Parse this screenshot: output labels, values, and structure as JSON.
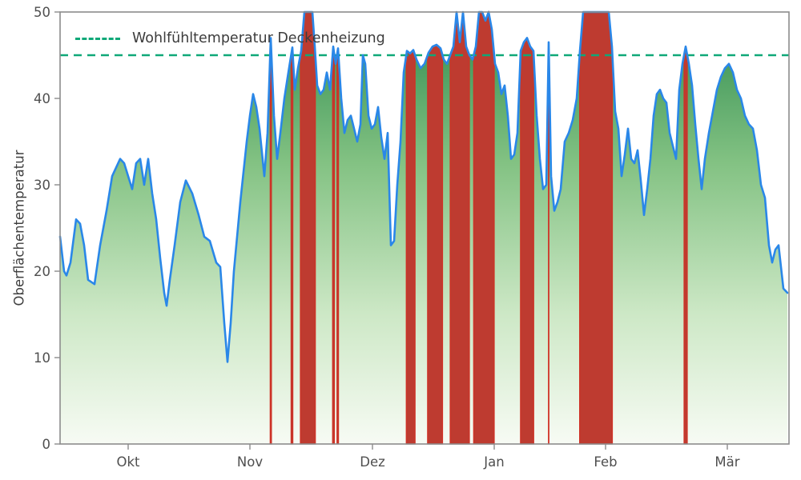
{
  "chart_data": {
    "type": "area",
    "title": "",
    "xlabel": "",
    "ylabel": "Oberflächentemperatur",
    "ylim": [
      0,
      50
    ],
    "xlim": [
      0,
      182
    ],
    "grid": false,
    "legend_position": "upper left",
    "y_ticks": [
      0,
      10,
      20,
      30,
      40,
      50
    ],
    "x_ticks": [
      {
        "label": "Okt",
        "day": 17
      },
      {
        "label": "Nov",
        "day": 47.4
      },
      {
        "label": "Dez",
        "day": 78
      },
      {
        "label": "Jan",
        "day": 108.4
      },
      {
        "label": "Feb",
        "day": 136.2
      },
      {
        "label": "Mär",
        "day": 166.6
      }
    ],
    "threshold": {
      "value": 45,
      "label": "Wohlfühltemperatur Deckenheizung",
      "color": "#0fa878",
      "style": "dashed"
    },
    "exceedance_rule": "regions where temperature exceeds threshold are filled red",
    "colors": {
      "line": "#2a87e8",
      "area_top": "#2e8b4e",
      "area_mid1": "#83c283",
      "area_mid2": "#cde8c6",
      "area_bottom": "#f7fbf4",
      "exceed_fill": "#be3b30",
      "exceed_edge": "#d03125",
      "threshold": "#0fa878",
      "axis": "#8c8c8c",
      "tick_text": "#4f4f4f"
    },
    "series": [
      {
        "name": "Oberflächentemperatur",
        "points": [
          [
            0,
            24
          ],
          [
            1,
            20
          ],
          [
            1.6,
            19.5
          ],
          [
            2.6,
            21
          ],
          [
            4,
            26
          ],
          [
            5,
            25.5
          ],
          [
            6,
            23
          ],
          [
            7,
            19
          ],
          [
            8.6,
            18.5
          ],
          [
            10,
            23
          ],
          [
            11.6,
            27
          ],
          [
            13,
            31
          ],
          [
            15,
            33
          ],
          [
            16,
            32.5
          ],
          [
            17,
            31
          ],
          [
            18,
            29.5
          ],
          [
            19,
            32.5
          ],
          [
            20,
            33
          ],
          [
            21,
            30
          ],
          [
            22,
            33
          ],
          [
            23,
            29
          ],
          [
            24,
            26
          ],
          [
            25,
            21.5
          ],
          [
            26,
            17.5
          ],
          [
            26.6,
            16
          ],
          [
            27.4,
            19
          ],
          [
            28.6,
            23
          ],
          [
            30,
            28
          ],
          [
            31.4,
            30.5
          ],
          [
            33,
            29
          ],
          [
            34.6,
            26.5
          ],
          [
            36,
            24
          ],
          [
            37.4,
            23.5
          ],
          [
            39,
            21
          ],
          [
            40,
            20.5
          ],
          [
            41,
            14
          ],
          [
            41.8,
            9.5
          ],
          [
            42.6,
            14
          ],
          [
            43.4,
            20
          ],
          [
            45,
            28
          ],
          [
            46.6,
            35
          ],
          [
            47.4,
            38
          ],
          [
            48.2,
            40.5
          ],
          [
            49,
            39
          ],
          [
            49.8,
            36.5
          ],
          [
            51,
            31
          ],
          [
            51.8,
            36
          ],
          [
            52.6,
            47
          ],
          [
            53.4,
            38
          ],
          [
            54.2,
            33
          ],
          [
            55,
            36
          ],
          [
            56,
            40
          ],
          [
            57,
            43
          ],
          [
            58,
            45.9
          ],
          [
            58.6,
            41
          ],
          [
            59.4,
            43.5
          ],
          [
            60.2,
            45.5
          ],
          [
            61,
            50
          ],
          [
            62,
            50
          ],
          [
            63,
            50
          ],
          [
            63.6,
            46
          ],
          [
            64.2,
            41.5
          ],
          [
            65,
            40.5
          ],
          [
            65.8,
            41
          ],
          [
            66.6,
            43
          ],
          [
            67.4,
            41
          ],
          [
            68.2,
            46
          ],
          [
            68.8,
            44
          ],
          [
            69.4,
            45.8
          ],
          [
            70.2,
            40
          ],
          [
            71,
            36
          ],
          [
            71.8,
            37.5
          ],
          [
            72.6,
            38
          ],
          [
            73.4,
            36.5
          ],
          [
            74.2,
            35
          ],
          [
            75,
            37
          ],
          [
            75.6,
            45
          ],
          [
            76.2,
            44
          ],
          [
            77,
            38
          ],
          [
            77.8,
            36.5
          ],
          [
            78.6,
            37
          ],
          [
            79.4,
            39
          ],
          [
            80.2,
            35.5
          ],
          [
            81,
            33
          ],
          [
            81.8,
            36
          ],
          [
            82.6,
            23
          ],
          [
            83.4,
            23.5
          ],
          [
            84.2,
            30
          ],
          [
            85,
            35
          ],
          [
            85.8,
            43
          ],
          [
            86.6,
            45.5
          ],
          [
            87.4,
            45.2
          ],
          [
            88.2,
            45.6
          ],
          [
            89,
            44.5
          ],
          [
            90,
            43.5
          ],
          [
            91,
            44
          ],
          [
            92,
            45.3
          ],
          [
            93,
            46
          ],
          [
            94,
            46.2
          ],
          [
            95,
            45.8
          ],
          [
            95.8,
            44.5
          ],
          [
            96.6,
            44
          ],
          [
            97.4,
            45
          ],
          [
            98.2,
            46
          ],
          [
            99,
            50
          ],
          [
            99.8,
            46.5
          ],
          [
            100.6,
            50
          ],
          [
            101.4,
            46
          ],
          [
            102.2,
            45
          ],
          [
            103,
            44.5
          ],
          [
            103.8,
            46
          ],
          [
            104.6,
            50
          ],
          [
            105.4,
            50
          ],
          [
            106.2,
            49
          ],
          [
            107,
            50
          ],
          [
            107.8,
            48
          ],
          [
            108.6,
            44
          ],
          [
            109.4,
            43
          ],
          [
            110.2,
            40.5
          ],
          [
            111,
            41.5
          ],
          [
            111.8,
            38
          ],
          [
            112.6,
            33
          ],
          [
            113.4,
            33.5
          ],
          [
            114.2,
            36
          ],
          [
            115,
            45.5
          ],
          [
            115.8,
            46.5
          ],
          [
            116.6,
            47
          ],
          [
            117.4,
            46
          ],
          [
            118.2,
            45.5
          ],
          [
            119,
            38
          ],
          [
            119.8,
            33
          ],
          [
            120.6,
            29.5
          ],
          [
            121.4,
            30
          ],
          [
            122,
            46.5
          ],
          [
            122.6,
            31
          ],
          [
            123.4,
            27
          ],
          [
            124.2,
            28
          ],
          [
            125,
            29.5
          ],
          [
            126,
            35
          ],
          [
            127,
            36
          ],
          [
            128,
            37.5
          ],
          [
            129,
            40
          ],
          [
            129.8,
            45.5
          ],
          [
            130.6,
            50
          ],
          [
            132,
            50
          ],
          [
            134,
            50
          ],
          [
            136,
            50
          ],
          [
            137,
            50
          ],
          [
            137.8,
            46
          ],
          [
            138.6,
            38.5
          ],
          [
            139.4,
            36.5
          ],
          [
            140.2,
            31
          ],
          [
            141,
            33.5
          ],
          [
            141.8,
            36.5
          ],
          [
            142.6,
            33
          ],
          [
            143.4,
            32.5
          ],
          [
            144.2,
            34
          ],
          [
            145,
            30.5
          ],
          [
            145.8,
            26.5
          ],
          [
            146.6,
            29.5
          ],
          [
            147.4,
            33
          ],
          [
            148.2,
            38
          ],
          [
            149,
            40.5
          ],
          [
            149.8,
            41
          ],
          [
            150.6,
            40
          ],
          [
            151.4,
            39.5
          ],
          [
            152.2,
            36
          ],
          [
            153,
            34.5
          ],
          [
            153.8,
            33
          ],
          [
            154.6,
            41
          ],
          [
            155.4,
            44
          ],
          [
            156.2,
            46
          ],
          [
            157,
            44
          ],
          [
            157.8,
            41.5
          ],
          [
            158.6,
            37
          ],
          [
            159.4,
            33
          ],
          [
            160.2,
            29.5
          ],
          [
            161,
            33
          ],
          [
            162,
            36
          ],
          [
            163,
            38.5
          ],
          [
            164,
            41
          ],
          [
            165,
            42.5
          ],
          [
            166,
            43.5
          ],
          [
            167,
            44
          ],
          [
            168,
            43
          ],
          [
            169,
            41
          ],
          [
            170,
            40
          ],
          [
            171,
            38
          ],
          [
            172,
            37
          ],
          [
            173,
            36.5
          ],
          [
            174,
            34
          ],
          [
            175,
            30
          ],
          [
            176,
            28.5
          ],
          [
            177,
            23
          ],
          [
            177.8,
            21
          ],
          [
            178.6,
            22.5
          ],
          [
            179.4,
            23
          ],
          [
            180.6,
            18
          ],
          [
            181.6,
            17.5
          ]
        ]
      }
    ]
  }
}
